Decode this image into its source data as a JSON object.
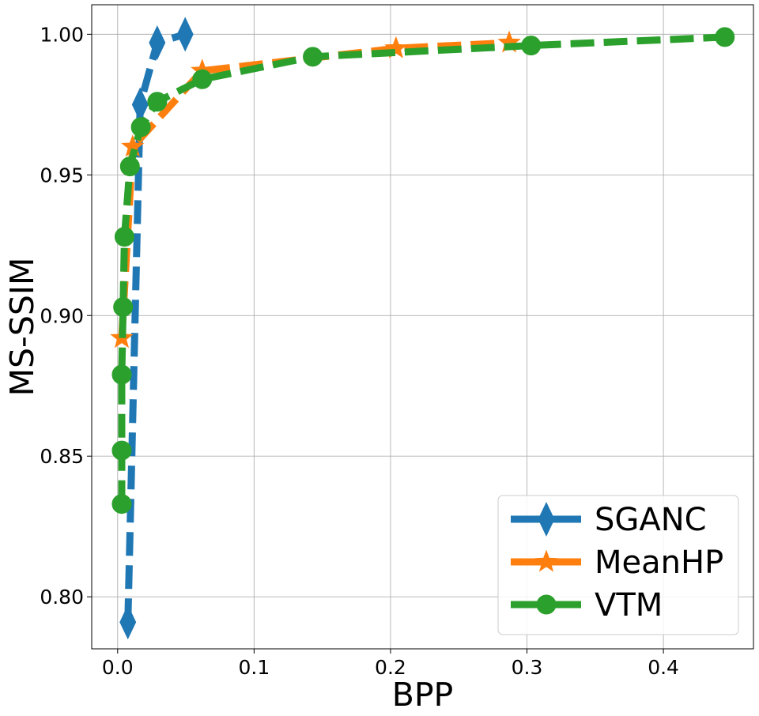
{
  "chart_data": {
    "type": "line",
    "title": "",
    "xlabel": "BPP",
    "ylabel": "MS-SSIM",
    "xlim": [
      -0.019,
      0.466
    ],
    "ylim": [
      0.7815,
      1.0105
    ],
    "xticks": [
      0.0,
      0.1,
      0.2,
      0.3,
      0.4
    ],
    "xtick_labels": [
      "0.0",
      "0.1",
      "0.2",
      "0.3",
      "0.4"
    ],
    "yticks": [
      0.8,
      0.85,
      0.9,
      0.95,
      1.0
    ],
    "ytick_labels": [
      "0.80",
      "0.85",
      "0.90",
      "0.95",
      "1.00"
    ],
    "grid": true,
    "legend_position": "bottom-right",
    "series": [
      {
        "name": "SGANC",
        "color": "#1f77b4",
        "marker": "thin_diamond",
        "x": [
          0.0075,
          0.0165,
          0.029,
          0.0495
        ],
        "y": [
          0.791,
          0.975,
          0.997,
          1.0
        ]
      },
      {
        "name": "MeanHP",
        "color": "#ff7f0e",
        "marker": "star",
        "x": [
          0.003,
          0.011,
          0.062,
          0.204,
          0.287
        ],
        "y": [
          0.892,
          0.96,
          0.987,
          0.995,
          0.997
        ]
      },
      {
        "name": "VTM",
        "color": "#2ca02c",
        "marker": "circle",
        "x": [
          0.003,
          0.003,
          0.003,
          0.004,
          0.005,
          0.009,
          0.017,
          0.029,
          0.062,
          0.143,
          0.303,
          0.445
        ],
        "y": [
          0.833,
          0.852,
          0.879,
          0.903,
          0.928,
          0.953,
          0.967,
          0.976,
          0.984,
          0.992,
          0.996,
          0.999
        ]
      }
    ]
  }
}
